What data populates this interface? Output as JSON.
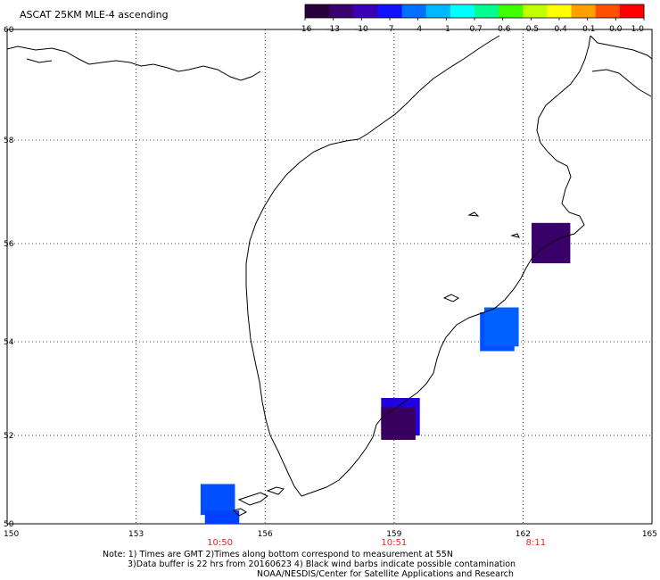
{
  "title": "ASCAT 25KM MLE-4 ascending",
  "colorbar": {
    "labels": [
      "-16",
      "-13",
      "-10",
      "-7",
      "-4",
      "-1",
      "-0.7",
      "-0.6",
      "-0.5",
      "-0.4",
      "-0.1",
      "0.0",
      "1.0"
    ],
    "colors": [
      "#2a003a",
      "#3a0070",
      "#3c00b4",
      "#1010ff",
      "#0070ff",
      "#00b8ff",
      "#00ffff",
      "#00ff90",
      "#40ff00",
      "#c0ff00",
      "#ffff00",
      "#ffa000",
      "#ff5000",
      "#ff0000"
    ]
  },
  "x_ticks": [
    "150",
    "153",
    "156",
    "159",
    "162",
    "165"
  ],
  "y_ticks": [
    "60",
    "58",
    "56",
    "54",
    "52",
    "50"
  ],
  "times": [
    "10:50",
    "10:51",
    "8:11"
  ],
  "notes": [
    "Note: 1) Times are GMT 2)Times along bottom correspond to measurement at 55N",
    "3)Data buffer is 22 hrs from 20160623 4) Black wind barbs indicate possible contamination",
    "NOAA/NESDIS/Center for Satellite Applications and Research"
  ],
  "chart_data": {
    "type": "map",
    "xlim": [
      150,
      165
    ],
    "ylim": [
      50,
      60
    ],
    "grid": true,
    "swath_cells": [
      {
        "lon": [
          154.5,
          155.3
        ],
        "lat": [
          50.2,
          50.9
        ],
        "value": -7,
        "color": "#0050ff"
      },
      {
        "lon": [
          154.6,
          155.4
        ],
        "lat": [
          50.0,
          50.3
        ],
        "value": -7,
        "color": "#0040ff"
      },
      {
        "lon": [
          158.7,
          159.6
        ],
        "lat": [
          52.0,
          52.8
        ],
        "value": -10,
        "color": "#2000e0"
      },
      {
        "lon": [
          158.7,
          159.5
        ],
        "lat": [
          51.9,
          52.6
        ],
        "value": -13,
        "color": "#3a0060"
      },
      {
        "lon": [
          161.0,
          161.8
        ],
        "lat": [
          53.8,
          54.6
        ],
        "value": -7,
        "color": "#0050ff"
      },
      {
        "lon": [
          161.1,
          161.9
        ],
        "lat": [
          53.9,
          54.7
        ],
        "value": -7,
        "color": "#0060ff"
      },
      {
        "lon": [
          162.2,
          163.1
        ],
        "lat": [
          55.6,
          56.4
        ],
        "value": -16,
        "color": "#3a006a"
      }
    ]
  }
}
